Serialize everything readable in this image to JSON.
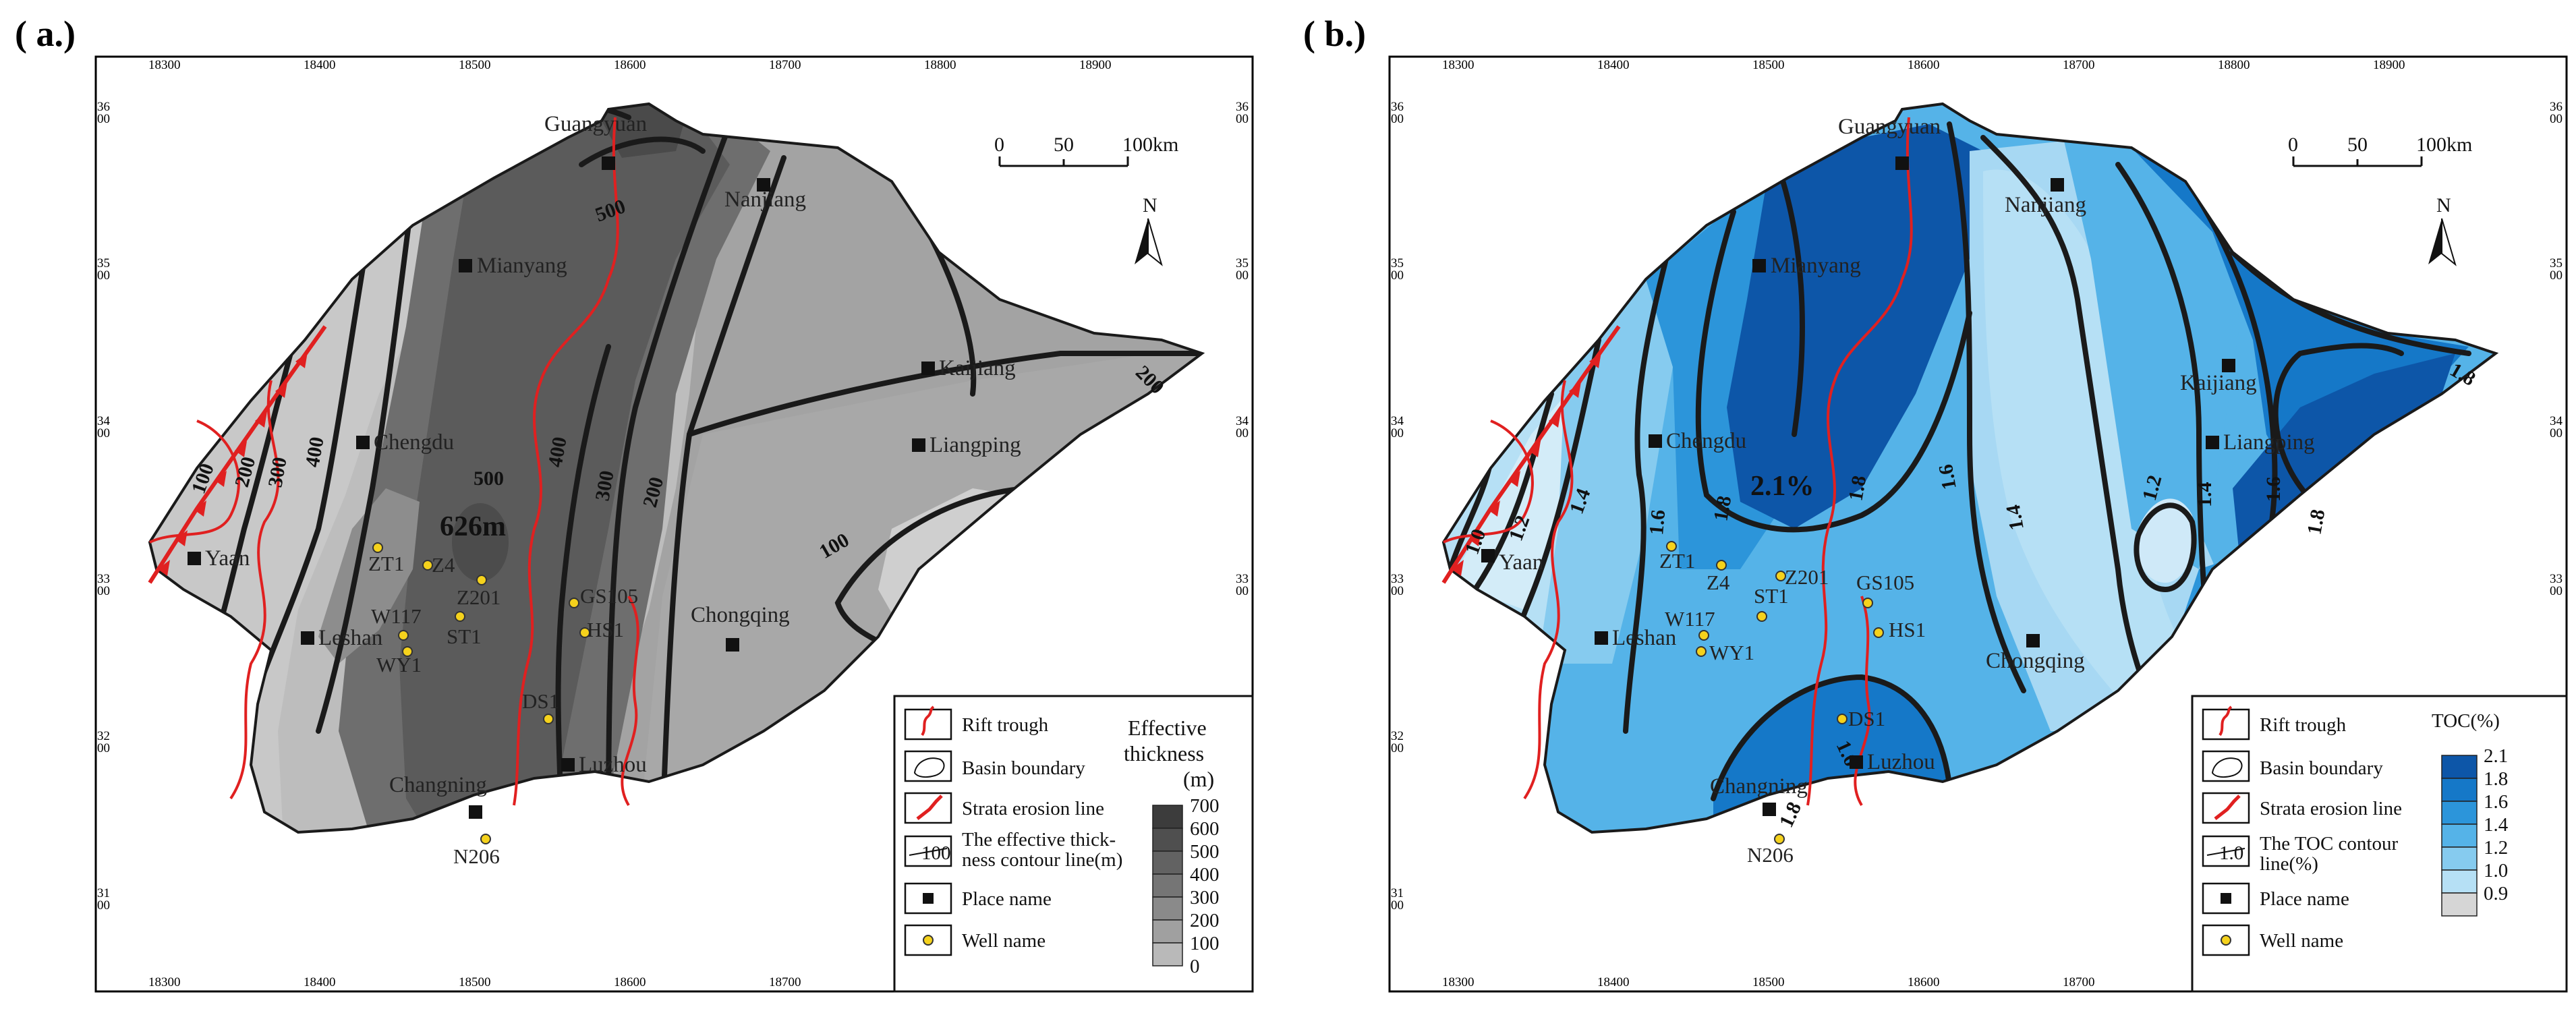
{
  "panels": [
    {
      "id": "a",
      "label": "( a.)",
      "center_value": "626m",
      "x_ticks": [
        "18300",
        "18400",
        "18500",
        "18600",
        "18700",
        "18800",
        "18900"
      ],
      "y_ticks": [
        [
          "36",
          "00"
        ],
        [
          "35",
          "00"
        ],
        [
          "34",
          "00"
        ],
        [
          "33",
          "00"
        ],
        [
          "32",
          "00"
        ],
        [
          "31",
          "00"
        ]
      ],
      "scale": {
        "t0": "0",
        "t50": "50",
        "t100": "100km"
      },
      "north": "N",
      "cities": {
        "guangyuan": "Guangyuan",
        "nanjiang": "Nanjiang",
        "mianyang": "Mianyang",
        "kaijiang": "Kaijiang",
        "chengdu": "Chengdu",
        "liangping": "Liangping",
        "yaan": "Yaan",
        "leshan": "Leshan",
        "chongqing": "Chongqing",
        "changning": "Changning",
        "luzhou": "Luzhou"
      },
      "wells": {
        "zt1": "ZT1",
        "z4": "Z4",
        "z201": "Z201",
        "w117": "W117",
        "st1": "ST1",
        "wy1": "WY1",
        "gs105": "GS105",
        "hs1": "HS1",
        "ds1": "DS1",
        "n206": "N206"
      },
      "contours": {
        "c100_w": "100",
        "c200_w": "200",
        "c300_w": "300",
        "c400_w": "400",
        "c500": "500",
        "c400_e": "400",
        "c300_e": "300",
        "c200_e": "200",
        "c100_e": "100",
        "c200_ne": "200",
        "c500_n": "500"
      },
      "legend": {
        "rift": "Rift trough",
        "basin": "Basin boundary",
        "erosion": "Strata erosion line",
        "contour_1": "The effective thick-",
        "contour_2": "ness contour line(m)",
        "contour_sample": "100",
        "place": "Place name",
        "well": "Well  name",
        "scale_title_1": "Effective",
        "scale_title_2": "thickness",
        "scale_title_3": "(m)",
        "scale_values": [
          "700",
          "600",
          "500",
          "400",
          "300",
          "200",
          "100",
          "0"
        ],
        "scale_colors": [
          "#3c3c3c",
          "#4f4f4f",
          "#626262",
          "#757575",
          "#8a8a8a",
          "#a0a0a0",
          "#b9b9b9"
        ]
      }
    },
    {
      "id": "b",
      "label": "( b.)",
      "center_value": "2.1%",
      "x_ticks": [
        "18300",
        "18400",
        "18500",
        "18600",
        "18700",
        "18800",
        "18900"
      ],
      "y_ticks": [
        [
          "36",
          "00"
        ],
        [
          "35",
          "00"
        ],
        [
          "34",
          "00"
        ],
        [
          "33",
          "00"
        ],
        [
          "32",
          "00"
        ],
        [
          "31",
          "00"
        ]
      ],
      "scale": {
        "t0": "0",
        "t50": "50",
        "t100": "100km"
      },
      "north": "N",
      "cities": {
        "guangyuan": "Guangyuan",
        "nanjiang": "Nanjiang",
        "mianyang": "Mianyang",
        "kaijiang": "Kaijiang",
        "chengdu": "Chengdu",
        "liangping": "Liangping",
        "yaan": "Yaan",
        "leshan": "Leshan",
        "chongqing": "Chongqing",
        "changning": "Changning",
        "luzhou": "Luzhou"
      },
      "wells": {
        "zt1": "ZT1",
        "z4": "Z4",
        "z201": "Z201",
        "w117": "W117",
        "st1": "ST1",
        "wy1": "WY1",
        "gs105": "GS105",
        "hs1": "HS1",
        "ds1": "DS1",
        "n206": "N206"
      },
      "contours": {
        "c10": "1.0",
        "c12_w": "1.2",
        "c14_w": "1.4",
        "c16_w": "1.6",
        "c18_w": "1.8",
        "c18_c": "1.8",
        "c16_c": "1.6",
        "c14_c": "1.4",
        "c12_chq": "1.2",
        "c14_e": "1.4",
        "c16_e": "1.6",
        "c18_ne": "1.8",
        "c18_e": "1.8",
        "c16_s": "1.6",
        "c18_s": "1.8"
      },
      "legend": {
        "rift": "Rift trough",
        "basin": "Basin boundary",
        "erosion": "Strata erosion line",
        "contour_1": "The TOC contour",
        "contour_2": "line(%)",
        "contour_sample": "1.0",
        "place": "Place name",
        "well": "Well  name",
        "scale_title": "TOC(%)",
        "scale_values": [
          "2.1",
          "1.8",
          "1.6",
          "1.4",
          "1.2",
          "1.0",
          "0.9"
        ],
        "scale_colors": [
          "#0d56a8",
          "#1578c8",
          "#2c95da",
          "#55b3e8",
          "#86cbef",
          "#b6e0f5",
          "#d6d6d6"
        ]
      }
    }
  ]
}
